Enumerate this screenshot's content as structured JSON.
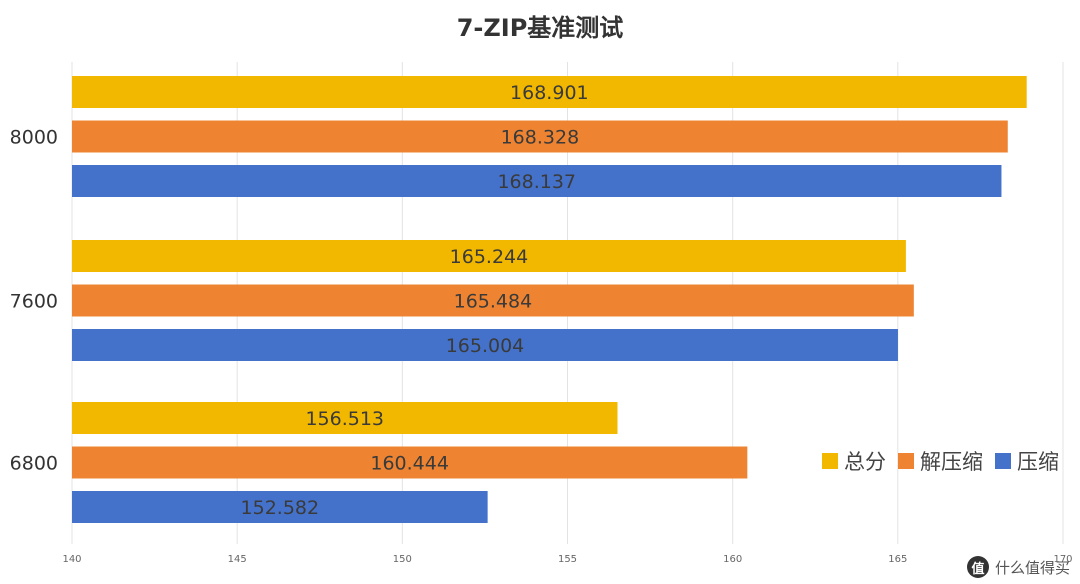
{
  "chart_data": {
    "type": "bar",
    "orientation": "horizontal",
    "title": "7-ZIP基准测试",
    "categories": [
      "8000",
      "7600",
      "6800"
    ],
    "series": [
      {
        "name": "总分",
        "color": "#F2B800",
        "values": [
          168.901,
          165.244,
          156.513
        ]
      },
      {
        "name": "解压缩",
        "color": "#EE8431",
        "values": [
          168.328,
          165.484,
          160.444
        ]
      },
      {
        "name": "压缩",
        "color": "#4472CA",
        "values": [
          168.137,
          165.004,
          152.582
        ]
      }
    ],
    "xlim": [
      140,
      170
    ],
    "xticks": [
      "140",
      "145",
      "150",
      "155",
      "160",
      "165",
      "170"
    ],
    "grid": true,
    "legend_position": "right"
  },
  "watermark": {
    "logo": "值",
    "text": "什么值得买"
  }
}
